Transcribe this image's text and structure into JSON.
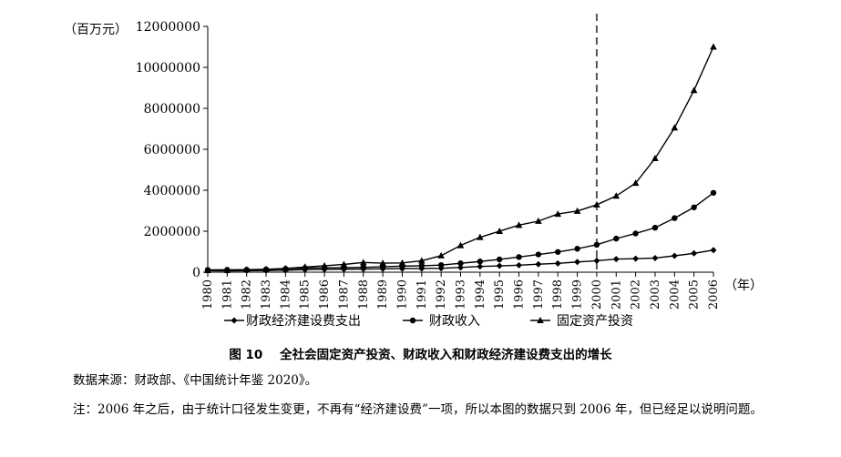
{
  "chart_data": {
    "type": "line",
    "y_unit_label": "（百万元）",
    "x_unit_label": "（年）",
    "categories": [
      "1980",
      "1981",
      "1982",
      "1983",
      "1984",
      "1985",
      "1986",
      "1987",
      "1988",
      "1989",
      "1990",
      "1991",
      "1992",
      "1993",
      "1994",
      "1995",
      "1996",
      "1997",
      "1998",
      "1999",
      "2000",
      "2001",
      "2002",
      "2003",
      "2004",
      "2005",
      "2006"
    ],
    "ylim": [
      0,
      12000000
    ],
    "yticks": [
      "0",
      "2000000",
      "4000000",
      "6000000",
      "8000000",
      "10000000",
      "12000000"
    ],
    "ytick_values": [
      0,
      2000000,
      4000000,
      6000000,
      8000000,
      10000000,
      12000000
    ],
    "vline_at": "2000",
    "series": [
      {
        "name": "财政经济建设费支出",
        "marker": "diamond",
        "values": [
          72000,
          63000,
          70000,
          79000,
          96000,
          123000,
          140000,
          147000,
          155000,
          165000,
          175000,
          180000,
          190000,
          230000,
          280000,
          310000,
          340000,
          390000,
          430000,
          500000,
          560000,
          640000,
          660000,
          690000,
          800000,
          920000,
          1080000
        ]
      },
      {
        "name": "财政收入",
        "marker": "circle",
        "values": [
          116000,
          118000,
          121000,
          137000,
          164000,
          200000,
          212000,
          220000,
          236000,
          266000,
          294000,
          315000,
          348000,
          434000,
          522000,
          624000,
          741000,
          865000,
          988000,
          1144000,
          1340000,
          1639000,
          1890000,
          2172000,
          2640000,
          3165000,
          3876000
        ]
      },
      {
        "name": "固定资产投资",
        "marker": "triangle",
        "values": [
          91000,
          96000,
          123000,
          143000,
          183000,
          254000,
          312000,
          379000,
          475000,
          441000,
          452000,
          559000,
          808000,
          1307000,
          1704000,
          2002000,
          2297000,
          2494000,
          2841000,
          2985000,
          3292000,
          3721000,
          4350000,
          5557000,
          7048000,
          8877000,
          11000000
        ]
      }
    ],
    "legend_placement": "bottom"
  },
  "caption": {
    "figure_no": "图 10",
    "title": "全社会固定资产投资、财政收入和财政经济建设费支出的增长"
  },
  "source_text": "数据来源：财政部、《中国统计年鉴 2020》。",
  "note_text": "注：2006 年之后，由于统计口径发生变更，不再有“经济建设费”一项，所以本图的数据只到 2006 年，但已经足以说明问题。"
}
